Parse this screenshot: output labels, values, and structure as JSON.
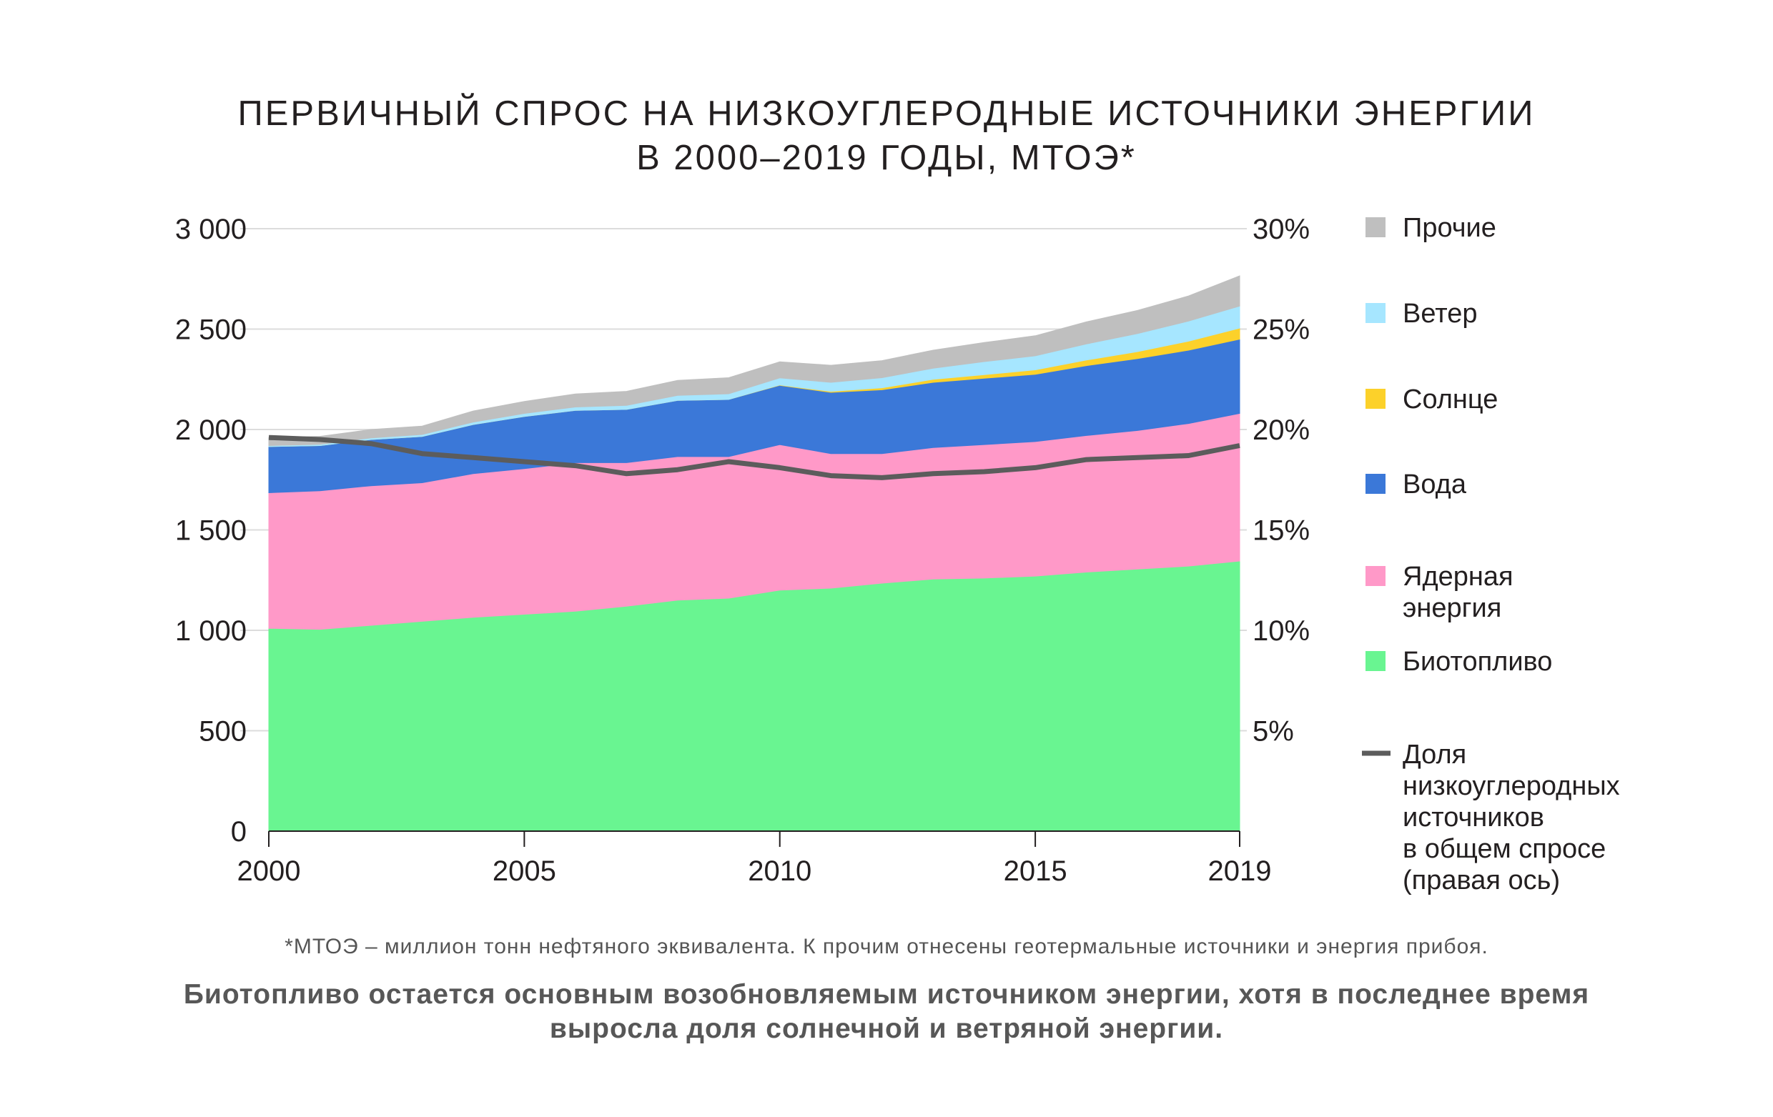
{
  "chart_data": {
    "type": "area",
    "title_lines": [
      "ПЕРВИЧНЫЙ СПРОС НА НИЗКОУГЛЕРОДНЫЕ ИСТОЧНИКИ ЭНЕРГИИ",
      "В 2000–2019 ГОДЫ, МТОЭ*"
    ],
    "x": [
      2000,
      2001,
      2002,
      2003,
      2004,
      2005,
      2006,
      2007,
      2008,
      2009,
      2010,
      2011,
      2012,
      2013,
      2014,
      2015,
      2016,
      2017,
      2018,
      2019
    ],
    "x_ticks": [
      "2000",
      "2005",
      "2010",
      "2015",
      "2019"
    ],
    "ylim": [
      0,
      3000
    ],
    "y_ticks": [
      "0",
      "500",
      "1 000",
      "1 500",
      "2 000",
      "2 500",
      "3 000"
    ],
    "y2lim": [
      0,
      30
    ],
    "y2_ticks": [
      "5%",
      "10%",
      "15%",
      "20%",
      "25%",
      "30%"
    ],
    "stack_order": [
      "Биотопливо",
      "Ядерная энергия",
      "Вода",
      "Солнце",
      "Ветер",
      "Прочие"
    ],
    "series": [
      {
        "name": "Биотопливо",
        "color": "#69f591",
        "values": [
          1010,
          1005,
          1025,
          1045,
          1065,
          1080,
          1095,
          1120,
          1150,
          1160,
          1200,
          1210,
          1235,
          1255,
          1260,
          1270,
          1290,
          1305,
          1320,
          1345
        ]
      },
      {
        "name": "Ядерная энергия",
        "color": "#ff99c8",
        "values": [
          675,
          690,
          695,
          690,
          715,
          725,
          740,
          715,
          715,
          705,
          725,
          670,
          645,
          655,
          665,
          670,
          680,
          690,
          710,
          735
        ]
      },
      {
        "name": "Вода",
        "color": "#3b78d8",
        "values": [
          230,
          225,
          230,
          230,
          245,
          260,
          260,
          265,
          280,
          285,
          295,
          305,
          318,
          325,
          330,
          335,
          348,
          358,
          365,
          370
        ]
      },
      {
        "name": "Солнце",
        "color": "#fcd12a",
        "values": [
          0,
          0,
          0,
          0,
          0,
          0,
          0,
          0,
          0,
          0,
          2,
          5,
          10,
          15,
          18,
          22,
          28,
          35,
          45,
          55
        ]
      },
      {
        "name": "Ветер",
        "color": "#a6e6ff",
        "values": [
          5,
          6,
          8,
          10,
          12,
          15,
          17,
          20,
          25,
          28,
          35,
          45,
          50,
          55,
          65,
          70,
          80,
          90,
          100,
          110
        ]
      },
      {
        "name": "Прочие",
        "color": "#bfbfbf",
        "values": [
          40,
          40,
          42,
          42,
          55,
          60,
          65,
          70,
          75,
          80,
          80,
          85,
          85,
          90,
          95,
          100,
          110,
          115,
          125,
          150
        ]
      }
    ],
    "line_series": {
      "name": "Доля низкоуглеродных источников в общем спросе (правая ось)",
      "axis": "right",
      "color": "#5c5c5c",
      "values": [
        19.6,
        19.5,
        19.3,
        18.8,
        18.6,
        18.4,
        18.2,
        17.8,
        18.0,
        18.4,
        18.1,
        17.7,
        17.6,
        17.8,
        17.9,
        18.1,
        18.5,
        18.6,
        18.7,
        19.2
      ]
    },
    "legend": [
      {
        "key": "Прочие",
        "lines": [
          "Прочие"
        ],
        "color": "#bfbfbf",
        "kind": "swatch"
      },
      {
        "key": "Ветер",
        "lines": [
          "Ветер"
        ],
        "color": "#a6e6ff",
        "kind": "swatch"
      },
      {
        "key": "Солнце",
        "lines": [
          "Солнце"
        ],
        "color": "#fcd12a",
        "kind": "swatch"
      },
      {
        "key": "Вода",
        "lines": [
          "Вода"
        ],
        "color": "#3b78d8",
        "kind": "swatch"
      },
      {
        "key": "Ядерная энергия",
        "lines": [
          "Ядерная",
          "энергия"
        ],
        "color": "#ff99c8",
        "kind": "swatch"
      },
      {
        "key": "Биотопливо",
        "lines": [
          "Биотопливо"
        ],
        "color": "#69f591",
        "kind": "swatch"
      },
      {
        "key": "Доля",
        "lines": [
          "Доля",
          "низкоуглеродных",
          "источников",
          "в общем спросе",
          "(правая ось)"
        ],
        "color": "#5c5c5c",
        "kind": "line"
      }
    ],
    "legend_position": "right"
  },
  "footer": {
    "note": "*МТОЭ – миллион тонн нефтяного эквивалента. К прочим отнесены геотермальные источники и энергия прибоя.",
    "conclusion_lines": [
      "Биотопливо остается основным возобновляемым источником энергии, хотя в последнее время",
      "выросла доля солнечной и ветряной энергии."
    ]
  }
}
